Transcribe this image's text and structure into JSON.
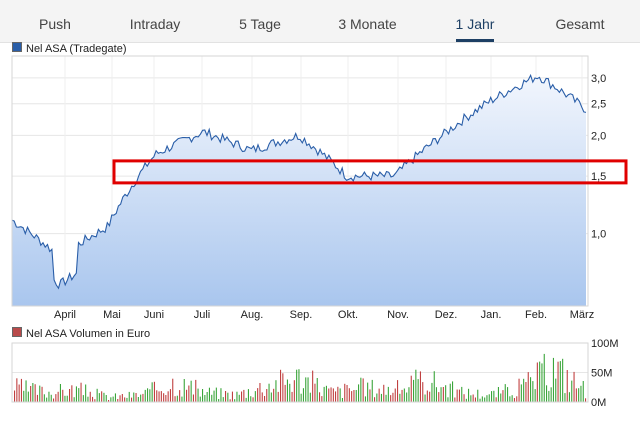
{
  "tabs": [
    {
      "label": "Push",
      "active": false
    },
    {
      "label": "Intraday",
      "active": false
    },
    {
      "label": "5 Tage",
      "active": false
    },
    {
      "label": "3 Monate",
      "active": false
    },
    {
      "label": "1 Jahr",
      "active": true
    },
    {
      "label": "Gesamt",
      "active": false
    }
  ],
  "price_chart": {
    "legend": "Nel ASA (Tradegate)",
    "legend_color": "#2a5ea8",
    "line_color": "#2a5ea8",
    "y_ticks": [
      "3,0",
      "2,5",
      "2,0",
      "1,5",
      "1,0"
    ],
    "x_ticks": [
      "April",
      "Mai",
      "Juni",
      "Juli",
      "Aug.",
      "Sep.",
      "Okt.",
      "Nov.",
      "Dez.",
      "Jan.",
      "Feb.",
      "März"
    ],
    "highlight": {
      "color": "#e00000",
      "from": 1.43,
      "to": 1.67
    }
  },
  "volume_chart": {
    "legend": "Nel ASA Volumen in Euro",
    "legend_color": "#b84a4a",
    "y_ticks": [
      "100M",
      "50M",
      "0M"
    ],
    "up_color": "#3aa53a",
    "down_color": "#c04040"
  },
  "chart_data": [
    {
      "type": "area",
      "title": "Nel ASA (Tradegate)",
      "scale": "log",
      "x": [
        "März",
        "April",
        "Mai",
        "Juni",
        "Juli",
        "Aug.",
        "Sep.",
        "Okt.",
        "Nov.",
        "Dez.",
        "Jan.",
        "Feb.",
        "März"
      ],
      "values": [
        1.1,
        0.85,
        1.05,
        1.75,
        2.05,
        1.8,
        2.0,
        1.5,
        1.5,
        2.0,
        2.55,
        3.05,
        2.4
      ],
      "ylim": [
        0.6,
        3.5
      ],
      "y_ticks": [
        1.0,
        1.5,
        2.0,
        2.5,
        3.0
      ],
      "grid": true
    },
    {
      "type": "bar",
      "title": "Nel ASA Volumen in Euro",
      "values": [
        30,
        20,
        25,
        10,
        15,
        40,
        20,
        15,
        35,
        50,
        20,
        30,
        25,
        45,
        20,
        15,
        30,
        70,
        25
      ],
      "ylim": [
        0,
        100
      ],
      "y_ticks": [
        0,
        50,
        100
      ]
    }
  ]
}
